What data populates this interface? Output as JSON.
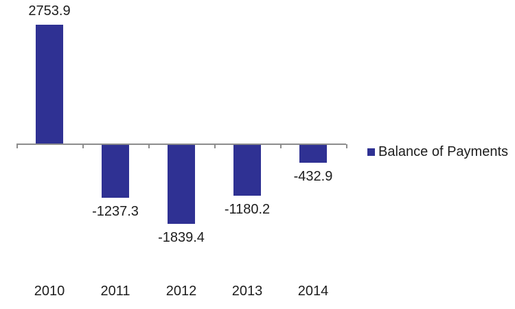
{
  "chart_data": {
    "type": "bar",
    "categories": [
      "2010",
      "2011",
      "2012",
      "2013",
      "2014"
    ],
    "series": [
      {
        "name": "Balance of Payments",
        "values": [
          2753.9,
          -1237.3,
          -1839.4,
          -1180.2,
          -432.9
        ],
        "value_labels": [
          "2753.9",
          "-1237.3",
          "-1839.4",
          "-1180.2",
          "-432.9"
        ]
      }
    ],
    "title": "",
    "xlabel": "",
    "ylabel": "",
    "data_labels_visible": true,
    "value_axis_visible": false,
    "grid": false,
    "legend_position": "right",
    "colors": {
      "bar": "#2F3193",
      "axis": "#8C8C8C",
      "text": "#1D1D1D",
      "background": "#FFFFFF"
    }
  }
}
